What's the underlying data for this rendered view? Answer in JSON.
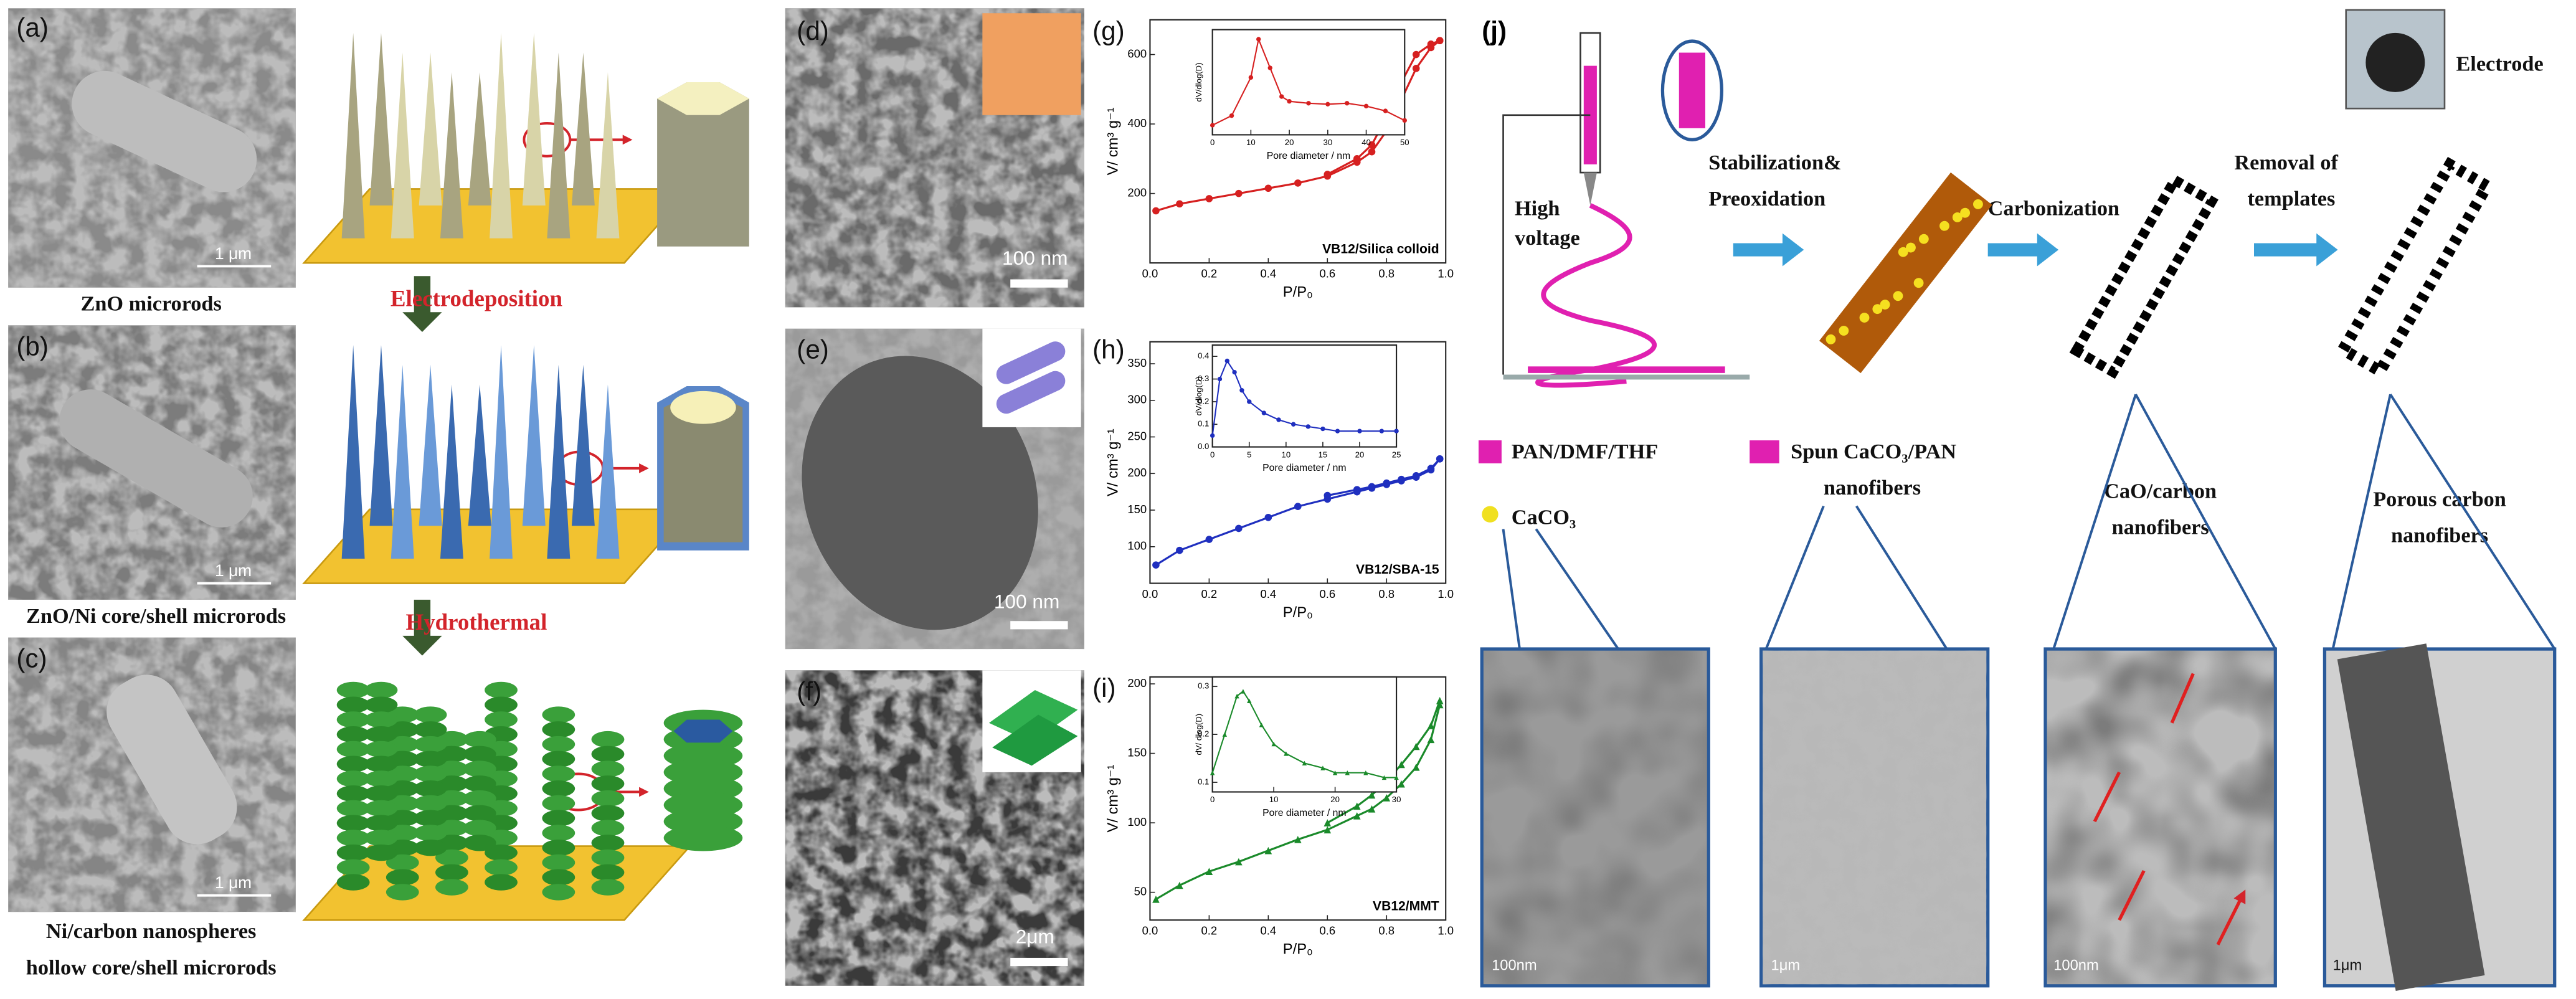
{
  "figure": {
    "panel_labels": [
      "(a)",
      "(b)",
      "(c)",
      "(d)",
      "(e)",
      "(f)",
      "(g)",
      "(h)",
      "(i)",
      "(j)"
    ],
    "captions": [
      "ZnO microrods",
      "ZnO/Ni core/shell microrods",
      "Ni/carbon nanospheres",
      "hollow core/shell microrods"
    ],
    "steps": [
      "Electrodeposition",
      "Hydrothermal"
    ],
    "scale_bars": [
      "1 μm",
      "1 μm",
      "1 μm",
      "100 nm",
      "100 nm",
      "2μm",
      "100nm",
      "1μm",
      "100nm",
      "1μm"
    ],
    "process": {
      "high_voltage": [
        "High",
        "voltage"
      ],
      "stabilization": [
        "Stabilization&",
        "Preoxidation"
      ],
      "carbonization": "Carbonization",
      "removal": [
        "Removal of",
        "templates"
      ],
      "electrode": "Electrode"
    },
    "legend": [
      "PAN/DMF/THF",
      "Spun CaCO₃/PAN",
      "nanofibers",
      "CaCO₃"
    ],
    "stages": [
      "CaO/carbon",
      "nanofibers",
      "Porous carbon",
      "nanofibers"
    ]
  },
  "chart_data": [
    {
      "type": "line",
      "marker": "circle",
      "color": "#d62020",
      "x": [
        0.02,
        0.1,
        0.2,
        0.3,
        0.4,
        0.5,
        0.6,
        0.7,
        0.75,
        0.8,
        0.85,
        0.9,
        0.95,
        0.98
      ],
      "series": [
        {
          "values": [
            150,
            170,
            185,
            200,
            215,
            230,
            250,
            290,
            320,
            380,
            470,
            560,
            620,
            640
          ]
        },
        {
          "values": [
            null,
            null,
            null,
            null,
            null,
            null,
            255,
            300,
            340,
            420,
            520,
            600,
            630,
            640
          ]
        }
      ],
      "xlim": [
        0,
        1
      ],
      "ylim": [
        0,
        700
      ],
      "xticks": [
        {
          "value": 0,
          "label": "0.0"
        },
        0.2,
        0.4,
        0.6,
        0.8,
        {
          "value": 1,
          "label": "1.0"
        }
      ],
      "yticks": [
        200,
        400,
        600
      ],
      "xlabel": "P/P₀",
      "ylabel": "V/ cm³ g⁻¹",
      "annotation": "VB12/Silica colloid"
    },
    {
      "type": "line",
      "marker": "circle",
      "color": "#d62020",
      "x": [
        0,
        5,
        10,
        12,
        15,
        18,
        20,
        25,
        30,
        35,
        40,
        45,
        50
      ],
      "series": [
        {
          "values": [
            0.1,
            0.2,
            0.6,
            1.0,
            0.7,
            0.4,
            0.35,
            0.33,
            0.32,
            0.33,
            0.3,
            0.25,
            0.15
          ]
        }
      ],
      "xlim": [
        0,
        50
      ],
      "ylim": [
        0,
        1.1
      ],
      "xticks": [
        0,
        10,
        20,
        30,
        40,
        50
      ],
      "xlabel": "Pore diameter / nm",
      "ylabel": "dV/dlog(D)"
    },
    {
      "type": "line",
      "marker": "circle",
      "color": "#1f2fbf",
      "x": [
        0.02,
        0.1,
        0.2,
        0.3,
        0.4,
        0.5,
        0.6,
        0.7,
        0.75,
        0.8,
        0.85,
        0.9,
        0.95,
        0.98
      ],
      "series": [
        {
          "values": [
            75,
            95,
            110,
            125,
            140,
            155,
            165,
            175,
            180,
            185,
            190,
            195,
            205,
            220
          ]
        },
        {
          "values": [
            null,
            null,
            null,
            null,
            null,
            null,
            170,
            178,
            182,
            187,
            192,
            197,
            207,
            220
          ]
        }
      ],
      "xlim": [
        0,
        1
      ],
      "ylim": [
        50,
        380
      ],
      "xticks": [
        {
          "value": 0,
          "label": "0.0"
        },
        0.2,
        0.4,
        0.6,
        0.8,
        {
          "value": 1,
          "label": "1.0"
        }
      ],
      "yticks": [
        100,
        150,
        200,
        250,
        300,
        350
      ],
      "xlabel": "P/P₀",
      "ylabel": "V/ cm³ g⁻¹",
      "annotation": "VB12/SBA-15"
    },
    {
      "type": "line",
      "marker": "circle",
      "color": "#1f2fbf",
      "x": [
        0,
        1,
        2,
        3,
        4,
        5,
        7,
        9,
        11,
        13,
        15,
        17,
        20,
        23,
        25
      ],
      "series": [
        {
          "values": [
            0.05,
            0.3,
            0.38,
            0.33,
            0.25,
            0.2,
            0.15,
            0.12,
            0.1,
            0.09,
            0.08,
            0.07,
            0.07,
            0.07,
            0.07
          ]
        }
      ],
      "xlim": [
        0,
        25
      ],
      "ylim": [
        0,
        0.45
      ],
      "xticks": [
        0,
        5,
        10,
        15,
        20,
        25
      ],
      "yticks": [
        {
          "value": 0,
          "label": "0.0"
        },
        0.1,
        0.2,
        0.3,
        0.4
      ],
      "xlabel": "Pore diameter / nm",
      "ylabel": "dV/dlog(D)"
    },
    {
      "type": "line",
      "marker": "triangle",
      "color": "#1a8a2a",
      "x": [
        0.02,
        0.1,
        0.2,
        0.3,
        0.4,
        0.5,
        0.6,
        0.7,
        0.75,
        0.8,
        0.85,
        0.9,
        0.95,
        0.98
      ],
      "series": [
        {
          "values": [
            45,
            55,
            65,
            72,
            80,
            88,
            95,
            105,
            110,
            118,
            128,
            140,
            160,
            185
          ]
        },
        {
          "values": [
            null,
            null,
            null,
            null,
            null,
            null,
            100,
            112,
            120,
            130,
            142,
            155,
            170,
            188
          ]
        }
      ],
      "xlim": [
        0,
        1
      ],
      "ylim": [
        30,
        205
      ],
      "xticks": [
        {
          "value": 0,
          "label": "0.0"
        },
        0.2,
        0.4,
        0.6,
        0.8,
        {
          "value": 1,
          "label": "1.0"
        }
      ],
      "yticks": [
        50,
        100,
        150,
        200
      ],
      "xlabel": "P/P₀",
      "ylabel": "V/ cm³ g⁻¹",
      "annotation": "VB12/MMT"
    },
    {
      "type": "line",
      "marker": "triangle",
      "color": "#1a8a2a",
      "x": [
        0,
        2,
        4,
        5,
        6,
        8,
        10,
        12,
        15,
        18,
        20,
        22,
        25,
        28,
        30
      ],
      "series": [
        {
          "values": [
            0.12,
            0.2,
            0.28,
            0.29,
            0.27,
            0.22,
            0.18,
            0.16,
            0.14,
            0.13,
            0.12,
            0.12,
            0.12,
            0.11,
            0.11
          ]
        }
      ],
      "xlim": [
        0,
        30
      ],
      "ylim": [
        0.08,
        0.32
      ],
      "xticks": [
        0,
        10,
        20,
        30
      ],
      "yticks": [
        0.1,
        0.2,
        0.3
      ],
      "xlabel": "Pore diameter / nm",
      "ylabel": "dV/ dlog(D)"
    }
  ]
}
